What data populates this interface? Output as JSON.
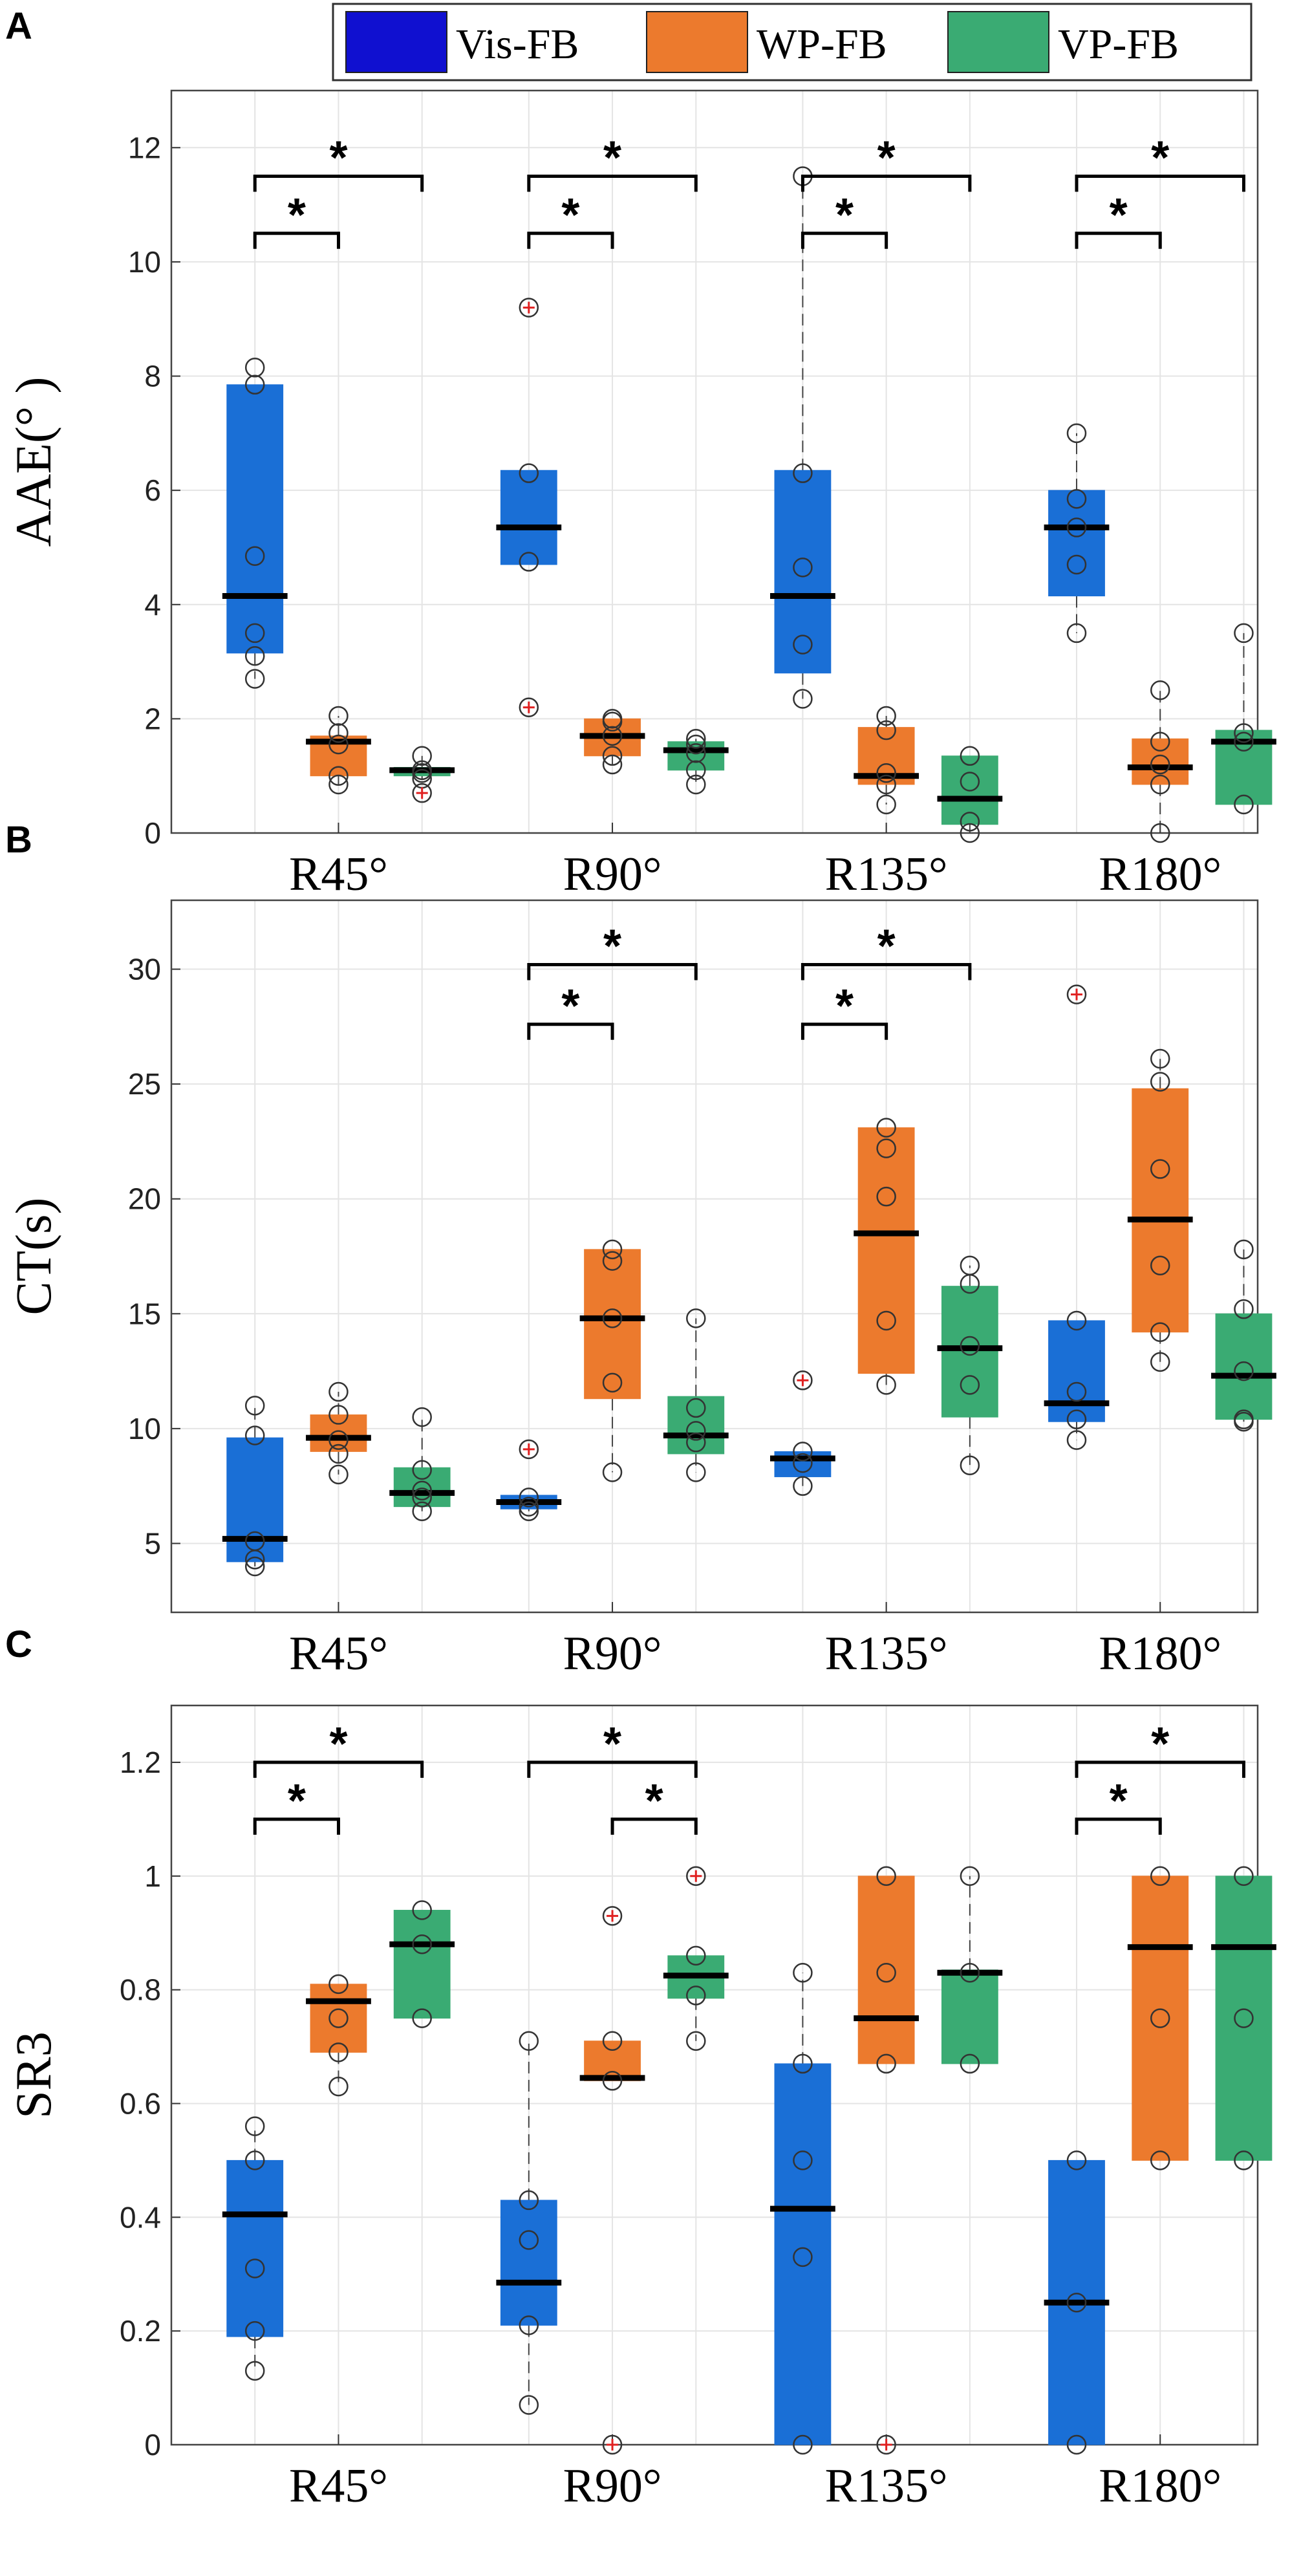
{
  "legend": {
    "items": [
      {
        "label": "Vis-FB",
        "color": "#1010d0"
      },
      {
        "label": "WP-FB",
        "color": "#ec7a2d"
      },
      {
        "label": "VP-FB",
        "color": "#3aab73"
      }
    ]
  },
  "colors": {
    "vis": "#1a6fd6",
    "wp": "#ec7a2d",
    "vp": "#3aab73",
    "grid": "#e4e4e4",
    "outlier": "#e02020"
  },
  "chart_data": [
    {
      "panel_label": "A",
      "type": "box",
      "ylabel": "AAE(°  )",
      "yticks": [
        "0",
        "2",
        "4",
        "6",
        "8",
        "10",
        "12"
      ],
      "ylim": [
        0,
        13
      ],
      "categories": [
        "R45°",
        "R90°",
        "R135°",
        "R180°"
      ],
      "groups": [
        "Vis-FB",
        "WP-FB",
        "VP-FB"
      ],
      "boxes": [
        [
          {
            "q1": 3.15,
            "median": 4.15,
            "q3": 7.85,
            "wlo": 2.7,
            "whi": 7.85,
            "points": [
              2.7,
              3.1,
              3.5,
              4.85,
              7.85,
              8.15
            ],
            "outliers": []
          },
          {
            "q1": 1.0,
            "median": 1.6,
            "q3": 1.7,
            "wlo": 0.85,
            "whi": 2.05,
            "points": [
              0.85,
              1.0,
              1.55,
              1.75,
              2.05
            ],
            "outliers": []
          },
          {
            "q1": 1.0,
            "median": 1.1,
            "q3": 1.15,
            "wlo": 0.95,
            "whi": 1.35,
            "points": [
              0.95,
              1.05,
              1.1,
              1.35
            ],
            "outliers": [
              0.7
            ]
          }
        ],
        [
          {
            "q1": 4.7,
            "median": 5.35,
            "q3": 6.35,
            "wlo": 4.7,
            "whi": 6.35,
            "points": [
              4.75,
              6.3
            ],
            "outliers": [
              9.2,
              2.2
            ]
          },
          {
            "q1": 1.35,
            "median": 1.7,
            "q3": 2.0,
            "wlo": 1.2,
            "whi": 2.0,
            "points": [
              1.2,
              1.35,
              1.7,
              1.95,
              2.0
            ],
            "outliers": []
          },
          {
            "q1": 1.1,
            "median": 1.45,
            "q3": 1.6,
            "wlo": 0.85,
            "whi": 1.65,
            "points": [
              0.85,
              1.1,
              1.4,
              1.55,
              1.65
            ],
            "outliers": []
          }
        ],
        [
          {
            "q1": 2.8,
            "median": 4.15,
            "q3": 6.35,
            "wlo": 2.35,
            "whi": 11.5,
            "points": [
              2.35,
              3.3,
              4.65,
              6.3,
              11.5
            ],
            "outliers": []
          },
          {
            "q1": 0.85,
            "median": 1.0,
            "q3": 1.85,
            "wlo": 0.5,
            "whi": 2.05,
            "points": [
              0.5,
              0.85,
              1.05,
              1.8,
              2.05
            ],
            "outliers": []
          },
          {
            "q1": 0.15,
            "median": 0.6,
            "q3": 1.35,
            "wlo": 0.0,
            "whi": 1.35,
            "points": [
              0.0,
              0.2,
              0.9,
              1.35
            ],
            "outliers": []
          }
        ],
        [
          {
            "q1": 4.15,
            "median": 5.35,
            "q3": 6.0,
            "wlo": 3.5,
            "whi": 7.0,
            "points": [
              3.5,
              4.7,
              5.35,
              5.85,
              7.0
            ],
            "outliers": []
          },
          {
            "q1": 0.85,
            "median": 1.15,
            "q3": 1.65,
            "wlo": 0.0,
            "whi": 2.5,
            "points": [
              0.0,
              0.85,
              1.2,
              1.6,
              2.5
            ],
            "outliers": []
          },
          {
            "q1": 0.5,
            "median": 1.6,
            "q3": 1.8,
            "wlo": 0.5,
            "whi": 3.5,
            "points": [
              0.5,
              1.6,
              1.75,
              3.5
            ],
            "outliers": []
          }
        ]
      ],
      "significance": [
        {
          "category": 0,
          "from": 0,
          "to": 1,
          "level": 0,
          "label": "*"
        },
        {
          "category": 0,
          "from": 0,
          "to": 2,
          "level": 1,
          "label": "*"
        },
        {
          "category": 1,
          "from": 0,
          "to": 1,
          "level": 0,
          "label": "*"
        },
        {
          "category": 1,
          "from": 0,
          "to": 2,
          "level": 1,
          "label": "*"
        },
        {
          "category": 2,
          "from": 0,
          "to": 1,
          "level": 0,
          "label": "*"
        },
        {
          "category": 2,
          "from": 0,
          "to": 2,
          "level": 1,
          "label": "*"
        },
        {
          "category": 3,
          "from": 0,
          "to": 1,
          "level": 0,
          "label": "*"
        },
        {
          "category": 3,
          "from": 0,
          "to": 2,
          "level": 1,
          "label": "*"
        }
      ],
      "sig_levels": [
        10.5,
        11.5
      ]
    },
    {
      "panel_label": "B",
      "type": "box",
      "ylabel": "CT(s)",
      "yticks": [
        "5",
        "10",
        "15",
        "20",
        "25",
        "30"
      ],
      "ylim": [
        2,
        33
      ],
      "categories": [
        "R45°",
        "R90°",
        "R135°",
        "R180°"
      ],
      "groups": [
        "Vis-FB",
        "WP-FB",
        "VP-FB"
      ],
      "boxes": [
        [
          {
            "q1": 4.2,
            "median": 5.2,
            "q3": 9.6,
            "wlo": 4.0,
            "whi": 11.0,
            "points": [
              4.0,
              4.3,
              5.1,
              9.7,
              11.0
            ],
            "outliers": []
          },
          {
            "q1": 9.0,
            "median": 9.6,
            "q3": 10.6,
            "wlo": 8.0,
            "whi": 11.6,
            "points": [
              8.0,
              8.9,
              9.5,
              10.6,
              11.6
            ],
            "outliers": []
          },
          {
            "q1": 6.6,
            "median": 7.2,
            "q3": 8.3,
            "wlo": 6.4,
            "whi": 10.5,
            "points": [
              6.4,
              7.0,
              7.3,
              8.2,
              10.5
            ],
            "outliers": []
          }
        ],
        [
          {
            "q1": 6.5,
            "median": 6.8,
            "q3": 7.1,
            "wlo": 6.4,
            "whi": 7.1,
            "points": [
              6.4,
              6.6,
              7.0
            ],
            "outliers": [
              9.1
            ]
          },
          {
            "q1": 11.3,
            "median": 14.8,
            "q3": 17.8,
            "wlo": 8.1,
            "whi": 17.8,
            "points": [
              8.1,
              12.0,
              14.8,
              17.3,
              17.8
            ],
            "outliers": []
          },
          {
            "q1": 8.9,
            "median": 9.7,
            "q3": 11.4,
            "wlo": 8.1,
            "whi": 14.8,
            "points": [
              8.1,
              9.4,
              9.9,
              10.9,
              14.8
            ],
            "outliers": []
          }
        ],
        [
          {
            "q1": 7.9,
            "median": 8.7,
            "q3": 9.0,
            "wlo": 7.5,
            "whi": 9.0,
            "points": [
              7.5,
              8.5,
              9.0
            ],
            "outliers": [
              12.1
            ]
          },
          {
            "q1": 12.4,
            "median": 18.5,
            "q3": 23.1,
            "wlo": 11.9,
            "whi": 23.1,
            "points": [
              11.9,
              14.7,
              20.1,
              22.2,
              23.1
            ],
            "outliers": []
          },
          {
            "q1": 10.5,
            "median": 13.5,
            "q3": 16.2,
            "wlo": 8.4,
            "whi": 17.1,
            "points": [
              8.4,
              11.9,
              13.6,
              16.3,
              17.1
            ],
            "outliers": []
          }
        ],
        [
          {
            "q1": 10.3,
            "median": 11.1,
            "q3": 14.7,
            "wlo": 9.5,
            "whi": 14.7,
            "points": [
              9.5,
              10.4,
              11.6,
              14.7
            ],
            "outliers": [
              28.9
            ]
          },
          {
            "q1": 14.2,
            "median": 19.1,
            "q3": 24.8,
            "wlo": 12.9,
            "whi": 26.1,
            "points": [
              12.9,
              14.2,
              17.1,
              21.3,
              25.1,
              26.1
            ],
            "outliers": []
          },
          {
            "q1": 10.4,
            "median": 12.3,
            "q3": 15.0,
            "wlo": 10.3,
            "whi": 17.8,
            "points": [
              10.3,
              10.4,
              12.5,
              15.2,
              17.8
            ],
            "outliers": []
          }
        ]
      ],
      "significance": [
        {
          "category": 1,
          "from": 0,
          "to": 1,
          "level": 0,
          "label": "*"
        },
        {
          "category": 1,
          "from": 0,
          "to": 2,
          "level": 1,
          "label": "*"
        },
        {
          "category": 2,
          "from": 0,
          "to": 1,
          "level": 0,
          "label": "*"
        },
        {
          "category": 2,
          "from": 0,
          "to": 2,
          "level": 1,
          "label": "*"
        }
      ],
      "sig_levels": [
        27.6,
        30.2
      ]
    },
    {
      "panel_label": "C",
      "type": "box",
      "ylabel": "SR3",
      "yticks": [
        "0",
        "0.2",
        "0.4",
        "0.6",
        "0.8",
        "1",
        "1.2"
      ],
      "ylim": [
        0,
        1.3
      ],
      "categories": [
        "R45°",
        "R90°",
        "R135°",
        "R180°"
      ],
      "groups": [
        "Vis-FB",
        "WP-FB",
        "VP-FB"
      ],
      "boxes": [
        [
          {
            "q1": 0.19,
            "median": 0.405,
            "q3": 0.5,
            "wlo": 0.13,
            "whi": 0.56,
            "points": [
              0.13,
              0.2,
              0.31,
              0.5,
              0.56
            ],
            "outliers": []
          },
          {
            "q1": 0.69,
            "median": 0.78,
            "q3": 0.81,
            "wlo": 0.63,
            "whi": 0.81,
            "points": [
              0.63,
              0.69,
              0.75,
              0.81
            ],
            "outliers": []
          },
          {
            "q1": 0.75,
            "median": 0.88,
            "q3": 0.94,
            "wlo": 0.75,
            "whi": 0.94,
            "points": [
              0.75,
              0.88,
              0.94
            ],
            "outliers": []
          }
        ],
        [
          {
            "q1": 0.21,
            "median": 0.285,
            "q3": 0.43,
            "wlo": 0.07,
            "whi": 0.71,
            "points": [
              0.07,
              0.21,
              0.36,
              0.43,
              0.71
            ],
            "outliers": []
          },
          {
            "q1": 0.64,
            "median": 0.645,
            "q3": 0.71,
            "wlo": 0.64,
            "whi": 0.71,
            "points": [
              0.64,
              0.71
            ],
            "outliers": [
              0.93,
              0.0
            ]
          },
          {
            "q1": 0.785,
            "median": 0.825,
            "q3": 0.86,
            "wlo": 0.71,
            "whi": 0.86,
            "points": [
              0.71,
              0.79,
              0.86
            ],
            "outliers": [
              1.0
            ]
          }
        ],
        [
          {
            "q1": 0.0,
            "median": 0.415,
            "q3": 0.67,
            "wlo": 0.0,
            "whi": 0.83,
            "points": [
              0.0,
              0.33,
              0.5,
              0.67,
              0.83
            ],
            "outliers": []
          },
          {
            "q1": 0.67,
            "median": 0.75,
            "q3": 1.0,
            "wlo": 0.67,
            "whi": 1.0,
            "points": [
              0.67,
              0.83,
              1.0
            ],
            "outliers": [
              0.0
            ]
          },
          {
            "q1": 0.67,
            "median": 0.83,
            "q3": 0.835,
            "wlo": 0.67,
            "whi": 1.0,
            "points": [
              0.67,
              0.83,
              1.0
            ],
            "outliers": []
          }
        ],
        [
          {
            "q1": 0.0,
            "median": 0.25,
            "q3": 0.5,
            "wlo": 0.0,
            "whi": 0.5,
            "points": [
              0.0,
              0.25,
              0.5
            ],
            "outliers": []
          },
          {
            "q1": 0.5,
            "median": 0.875,
            "q3": 1.0,
            "wlo": 0.5,
            "whi": 1.0,
            "points": [
              0.5,
              0.75,
              1.0
            ],
            "outliers": []
          },
          {
            "q1": 0.5,
            "median": 0.875,
            "q3": 1.0,
            "wlo": 0.5,
            "whi": 1.0,
            "points": [
              0.5,
              0.75,
              1.0
            ],
            "outliers": []
          }
        ]
      ],
      "significance": [
        {
          "category": 0,
          "from": 0,
          "to": 1,
          "level": 0,
          "label": "*"
        },
        {
          "category": 0,
          "from": 0,
          "to": 2,
          "level": 1,
          "label": "*"
        },
        {
          "category": 1,
          "from": 1,
          "to": 2,
          "level": 0,
          "label": "*"
        },
        {
          "category": 1,
          "from": 0,
          "to": 2,
          "level": 1,
          "label": "*"
        },
        {
          "category": 3,
          "from": 0,
          "to": 1,
          "level": 0,
          "label": "*"
        },
        {
          "category": 3,
          "from": 0,
          "to": 2,
          "level": 1,
          "label": "*"
        }
      ],
      "sig_levels": [
        1.1,
        1.2
      ]
    }
  ]
}
